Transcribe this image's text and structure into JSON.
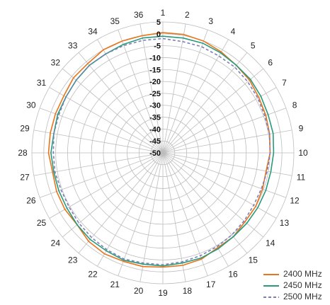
{
  "chart_data": {
    "type": "polar-line",
    "angle_labels": [
      "1",
      "2",
      "3",
      "4",
      "5",
      "6",
      "7",
      "8",
      "9",
      "10",
      "11",
      "12",
      "13",
      "14",
      "15",
      "16",
      "17",
      "18",
      "19",
      "20",
      "21",
      "22",
      "23",
      "24",
      "25",
      "26",
      "27",
      "28",
      "29",
      "30",
      "31",
      "32",
      "33",
      "34",
      "35",
      "36"
    ],
    "radial_labels": [
      "5",
      "0",
      "-5",
      "-10",
      "-15",
      "-20",
      "-25",
      "-30",
      "-35",
      "-40",
      "-45",
      "-50"
    ],
    "rlim": [
      -50,
      5
    ],
    "grid": true,
    "legend_position": "bottom-right",
    "series": [
      {
        "name": "2400 MHz",
        "color": "#E8741C",
        "dash": "solid",
        "values": [
          0.5,
          0.5,
          0,
          -1,
          -2,
          -2.5,
          -3.5,
          -4,
          -4.5,
          -5,
          -6,
          -5.5,
          -5,
          -5,
          -4,
          -4,
          -2.5,
          -2,
          -2,
          -1.5,
          -1.5,
          -1,
          -1.5,
          -3,
          -2.5,
          -2.5,
          -3,
          -2,
          -2,
          -2,
          -2,
          -1,
          -1,
          0,
          0,
          0
        ]
      },
      {
        "name": "2450 MHz",
        "color": "#2A9A7C",
        "dash": "solid",
        "values": [
          -1,
          -1,
          -1,
          -1.5,
          -2,
          -2,
          -2.5,
          -3,
          -3,
          -3.5,
          -4,
          -4,
          -4,
          -4,
          -4,
          -3.5,
          -3,
          -3,
          -2.5,
          -2.5,
          -2,
          -2.5,
          -2.5,
          -3,
          -3.5,
          -3.5,
          -3.5,
          -3,
          -3.5,
          -3,
          -3,
          -2.5,
          -2,
          -2,
          -1.5,
          -1
        ]
      },
      {
        "name": "2500 MHz",
        "color": "#7A7FB8",
        "dash": "dashed",
        "values": [
          -2,
          -2.5,
          -2.5,
          -3,
          -3,
          -3.5,
          -4,
          -4.5,
          -4.5,
          -5,
          -5.5,
          -6,
          -6,
          -5.5,
          -5,
          -4.5,
          -4,
          -3.5,
          -3,
          -3,
          -2.5,
          -3,
          -3.5,
          -4,
          -4.5,
          -4.5,
          -4,
          -4,
          -3.5,
          -3.5,
          -3,
          -2.5,
          -2,
          -2,
          -2,
          -2
        ]
      }
    ]
  }
}
